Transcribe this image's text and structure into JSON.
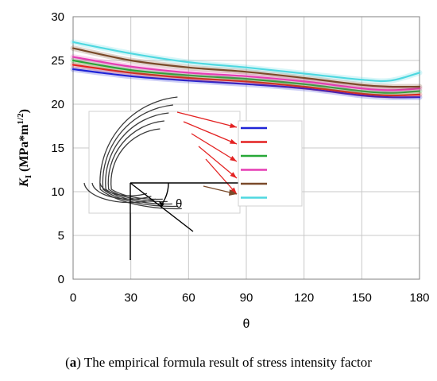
{
  "caption": {
    "panel": "a",
    "text": " The empirical formula result of stress intensity factor"
  },
  "chart_data": {
    "type": "line",
    "xlabel": "θ",
    "ylabel_main": "K",
    "ylabel_sub": "I",
    "ylabel_units_pre": " (MPa*m",
    "ylabel_units_sup": "1/2",
    "ylabel_units_post": ")",
    "xlim": [
      0,
      180
    ],
    "ylim": [
      0,
      30
    ],
    "xticks": [
      0,
      30,
      60,
      90,
      120,
      150,
      180
    ],
    "yticks": [
      0,
      5,
      10,
      15,
      20,
      25,
      30
    ],
    "grid": true,
    "legend": "inset-center-left",
    "x": [
      0,
      30,
      60,
      90,
      120,
      150,
      165,
      180
    ],
    "series": [
      {
        "color": "#1f24d6",
        "values": [
          24.0,
          23.2,
          22.7,
          22.3,
          21.8,
          21.0,
          20.8,
          20.8
        ]
      },
      {
        "color": "#e32222",
        "values": [
          24.5,
          23.6,
          23.0,
          22.6,
          22.0,
          21.2,
          21.0,
          21.1
        ]
      },
      {
        "color": "#27a837",
        "values": [
          25.0,
          23.9,
          23.3,
          22.9,
          22.3,
          21.5,
          21.3,
          21.5
        ]
      },
      {
        "color": "#e63cb4",
        "values": [
          25.4,
          24.3,
          23.6,
          23.2,
          22.6,
          21.8,
          21.6,
          21.8
        ]
      },
      {
        "color": "#7a4a2a",
        "values": [
          26.4,
          25.0,
          24.2,
          23.7,
          23.0,
          22.2,
          22.0,
          22.0
        ]
      },
      {
        "color": "#4fd8e0",
        "values": [
          27.1,
          25.8,
          24.8,
          24.2,
          23.5,
          22.8,
          22.7,
          23.6
        ]
      }
    ],
    "inset": {
      "angle_label": "θ"
    }
  }
}
